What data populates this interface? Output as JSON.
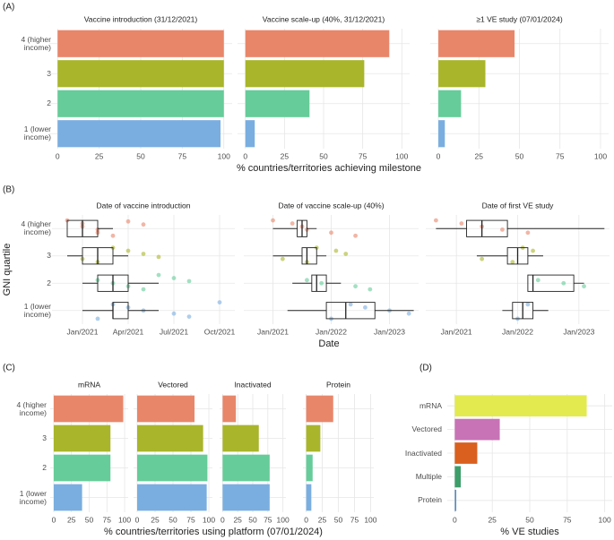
{
  "chart_data": [
    {
      "type": "bar",
      "panel_label": "(A)",
      "categories": [
        "4 (higher\nincome)",
        "3",
        "2",
        "1 (lower\nincome)"
      ],
      "colors": [
        "#e8866a",
        "#a9b52a",
        "#66cc99",
        "#7aaee0"
      ],
      "facets": [
        {
          "title": "Vaccine introduction (31/12/2021)",
          "values": [
            100,
            100,
            100,
            98
          ]
        },
        {
          "title": "Vaccine scale-up (40%, 31/12/2021)",
          "values": [
            92,
            76,
            41,
            6
          ]
        },
        {
          "title": "≥1 VE study (07/01/2024)",
          "values": [
            47,
            29,
            14,
            4
          ]
        }
      ],
      "xlim": [
        -5,
        105
      ],
      "xticks": [
        0,
        25,
        50,
        75,
        100
      ],
      "xlabel": "% countries/territories achieving milestone",
      "grid": true
    },
    {
      "type": "box",
      "panel_label": "(B)",
      "categories": [
        "4 (higher\nincome)",
        "3",
        "2",
        "1 (lower\nincome)"
      ],
      "colors": [
        "#e8866a",
        "#a9b52a",
        "#66cc99",
        "#7aaee0"
      ],
      "ylabel": "GNI quartile",
      "xlabel": "Date",
      "grid": true,
      "facets": [
        {
          "title": "Date of vaccine introduction",
          "xlim": [
            "2020-11",
            "2021-11"
          ],
          "xticks": [
            {
              "value": "2021-01",
              "label": "Jan/2021"
            },
            {
              "value": "2021-04",
              "label": "Apr/2021"
            },
            {
              "value": "2021-07",
              "label": "Jul/2021"
            },
            {
              "value": "2021-10",
              "label": "Oct/2021"
            }
          ],
          "boxes": [
            {
              "min": "2020-12",
              "q1": "2020-12",
              "median": "2021-01",
              "q3": "2021-02",
              "max": "2021-03"
            },
            {
              "min": "2020-12",
              "q1": "2021-01",
              "median": "2021-02",
              "q3": "2021-03",
              "max": "2021-04"
            },
            {
              "min": "2021-01",
              "q1": "2021-02",
              "median": "2021-03",
              "q3": "2021-04",
              "max": "2021-06"
            },
            {
              "min": "2021-01",
              "q1": "2021-03",
              "median": "2021-03",
              "q3": "2021-04",
              "max": "2021-06"
            }
          ],
          "points": [
            [
              "2020-12",
              "2021-01",
              "2021-01",
              "2021-02",
              "2021-02",
              "2021-03",
              "2021-04",
              "2021-05"
            ],
            [
              "2021-01",
              "2021-02",
              "2021-03",
              "2021-04",
              "2021-05",
              "2021-06"
            ],
            [
              "2021-02",
              "2021-03",
              "2021-04",
              "2021-05",
              "2021-06",
              "2021-07",
              "2021-08"
            ],
            [
              "2021-02",
              "2021-03",
              "2021-04",
              "2021-05",
              "2021-07",
              "2021-08",
              "2021-10"
            ]
          ]
        },
        {
          "title": "Date of vaccine scale-up (40%)",
          "xlim": [
            "2020-07",
            "2023-07"
          ],
          "xticks": [
            {
              "value": "2021-01",
              "label": "Jan/2021"
            },
            {
              "value": "2022-01",
              "label": "Jan/2022"
            },
            {
              "value": "2023-01",
              "label": "Jan/2023"
            }
          ],
          "boxes": [
            {
              "min": "2021-01",
              "q1": "2021-06",
              "median": "2021-07",
              "q3": "2021-08",
              "max": "2021-10"
            },
            {
              "min": "2021-01",
              "q1": "2021-07",
              "median": "2021-08",
              "q3": "2021-10",
              "max": "2021-12"
            },
            {
              "min": "2021-05",
              "q1": "2021-09",
              "median": "2021-10",
              "q3": "2021-12",
              "max": "2022-03"
            },
            {
              "min": "2021-04",
              "q1": "2021-12",
              "median": "2022-04",
              "q3": "2022-10",
              "max": "2023-06"
            }
          ],
          "points": [
            [
              "2021-01",
              "2021-05",
              "2021-07",
              "2021-08",
              "2022-01",
              "2022-06"
            ],
            [
              "2021-03",
              "2021-08",
              "2021-10",
              "2022-02",
              "2022-04"
            ],
            [
              "2021-08",
              "2021-11",
              "2022-06",
              "2022-09"
            ],
            [
              "2022-01",
              "2022-05",
              "2022-08",
              "2023-01",
              "2023-05"
            ]
          ]
        },
        {
          "title": "Date of first VE study",
          "xlim": [
            "2020-07",
            "2023-07"
          ],
          "xticks": [
            {
              "value": "2021-01",
              "label": "Jan/2021"
            },
            {
              "value": "2022-01",
              "label": "Jan/2022"
            },
            {
              "value": "2023-01",
              "label": "Jan/2023"
            }
          ],
          "boxes": [
            {
              "min": "2020-09",
              "q1": "2021-03",
              "median": "2021-06",
              "q3": "2021-11",
              "max": "2023-06"
            },
            {
              "min": "2021-05",
              "q1": "2021-11",
              "median": "2022-01",
              "q3": "2022-03",
              "max": "2022-06"
            },
            {
              "min": "2022-03",
              "q1": "2022-03",
              "median": "2022-04",
              "q3": "2022-12",
              "max": "2023-02"
            },
            {
              "min": "2021-10",
              "q1": "2021-12",
              "median": "2022-02",
              "q3": "2022-04",
              "max": "2022-07"
            }
          ],
          "points": [
            [
              "2020-09",
              "2021-02",
              "2021-06",
              "2021-10",
              "2022-03"
            ],
            [
              "2021-06",
              "2021-12",
              "2022-02",
              "2022-04"
            ],
            [
              "2022-05",
              "2022-10",
              "2023-02"
            ],
            [
              "2022-01",
              "2022-03"
            ]
          ]
        }
      ]
    },
    {
      "type": "bar",
      "panel_label": "(C)",
      "categories": [
        "4 (higher\nincome)",
        "3",
        "2",
        "1 (lower\nincome)"
      ],
      "colors": [
        "#e8866a",
        "#a9b52a",
        "#66cc99",
        "#7aaee0"
      ],
      "facets": [
        {
          "title": "mRNA",
          "values": [
            98,
            80,
            80,
            40
          ]
        },
        {
          "title": "Vectored",
          "values": [
            80,
            92,
            98,
            97
          ]
        },
        {
          "title": "Inactivated",
          "values": [
            22,
            60,
            78,
            78
          ]
        },
        {
          "title": "Protein",
          "values": [
            42,
            22,
            10,
            8
          ]
        }
      ],
      "xlim": [
        -5,
        105
      ],
      "xticks": [
        0,
        25,
        50,
        75,
        100
      ],
      "xlabel": "% countries/territories using platform (07/01/2024)",
      "grid": true
    },
    {
      "type": "bar",
      "panel_label": "(D)",
      "categories": [
        "mRNA",
        "Vectored",
        "Inactivated",
        "Multiple",
        "Protein"
      ],
      "colors": [
        "#e3ea50",
        "#c873b6",
        "#d9601f",
        "#3d9e6a",
        "#5a8fc0"
      ],
      "values": [
        88,
        30,
        15,
        4,
        1
      ],
      "xlim": [
        -5,
        105
      ],
      "xticks": [
        0,
        25,
        50,
        75,
        100
      ],
      "xlabel": "% VE studies",
      "grid": true
    }
  ]
}
